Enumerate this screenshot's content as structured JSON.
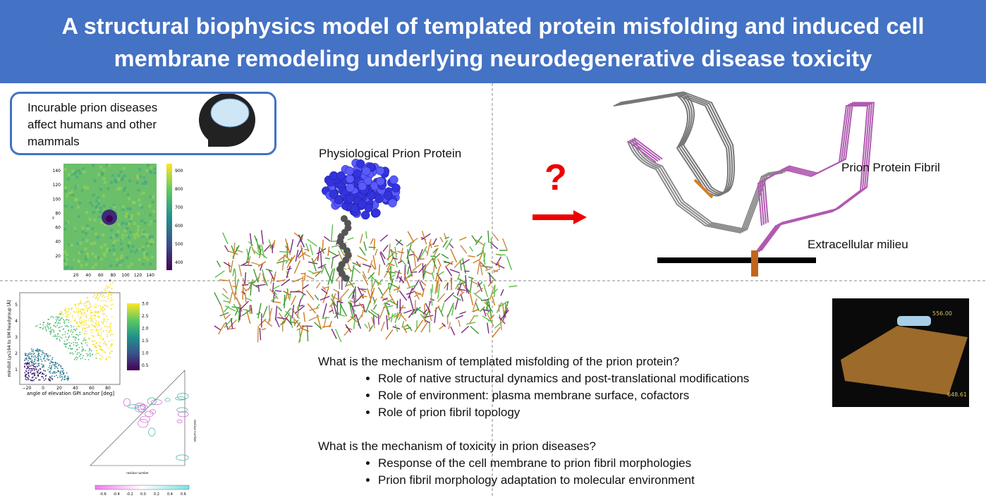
{
  "header": {
    "title": "A structural biophysics model of templated protein misfolding and induced cell membrane remodeling underlying neurodegenerative disease toxicity"
  },
  "callout": {
    "text": "Incurable prion diseases affect humans and other mammals"
  },
  "figures": {
    "protein_label": "Physiological Prion Protein",
    "question_mark": "?",
    "fibril_label": "Prion Protein Fibril",
    "milieu_label": "Extracellular milieu",
    "render_top_label": "556.00",
    "render_side_label": "648.61"
  },
  "heatmap": {
    "xticks": [
      "20",
      "40",
      "60",
      "80",
      "100",
      "120",
      "140"
    ],
    "yticks": [
      "20",
      "40",
      "60",
      "80",
      "100",
      "120",
      "140"
    ],
    "xlabel": "x",
    "ylabel": "y",
    "colorbar_ticks": [
      "400",
      "500",
      "600",
      "700",
      "800",
      "900"
    ]
  },
  "scatter": {
    "xticks": [
      "−20",
      "0",
      "20",
      "40",
      "60",
      "80"
    ],
    "yticks": [
      "1",
      "2",
      "3",
      "4",
      "5"
    ],
    "xlabel": "angle of elevation GPI anchor [deg]",
    "ylabel": "mindist Lys194 to SM headgroup [Å]",
    "colorbar_ticks": [
      "0.5",
      "1.0",
      "1.5",
      "2.0",
      "2.5",
      "3.0"
    ]
  },
  "contour": {
    "xlabel": "residue number",
    "ylabel": "residue number",
    "colorbar_ticks": [
      "-0.6",
      "-0.4",
      "-0.2",
      "0.0",
      "0.2",
      "0.4",
      "0.6"
    ]
  },
  "questions": [
    {
      "question": "What is the mechanism of templated misfolding of the prion protein?",
      "points": [
        "Role of native structural dynamics and post-translational modifications",
        "Role of environment: plasma membrane surface, cofactors",
        "Role of prion fibril topology"
      ]
    },
    {
      "question": "What is the mechanism of toxicity in prion diseases?",
      "points": [
        "Response of the cell membrane to prion fibril morphologies",
        "Prion fibril morphology adaptation to molecular environment"
      ]
    }
  ]
}
